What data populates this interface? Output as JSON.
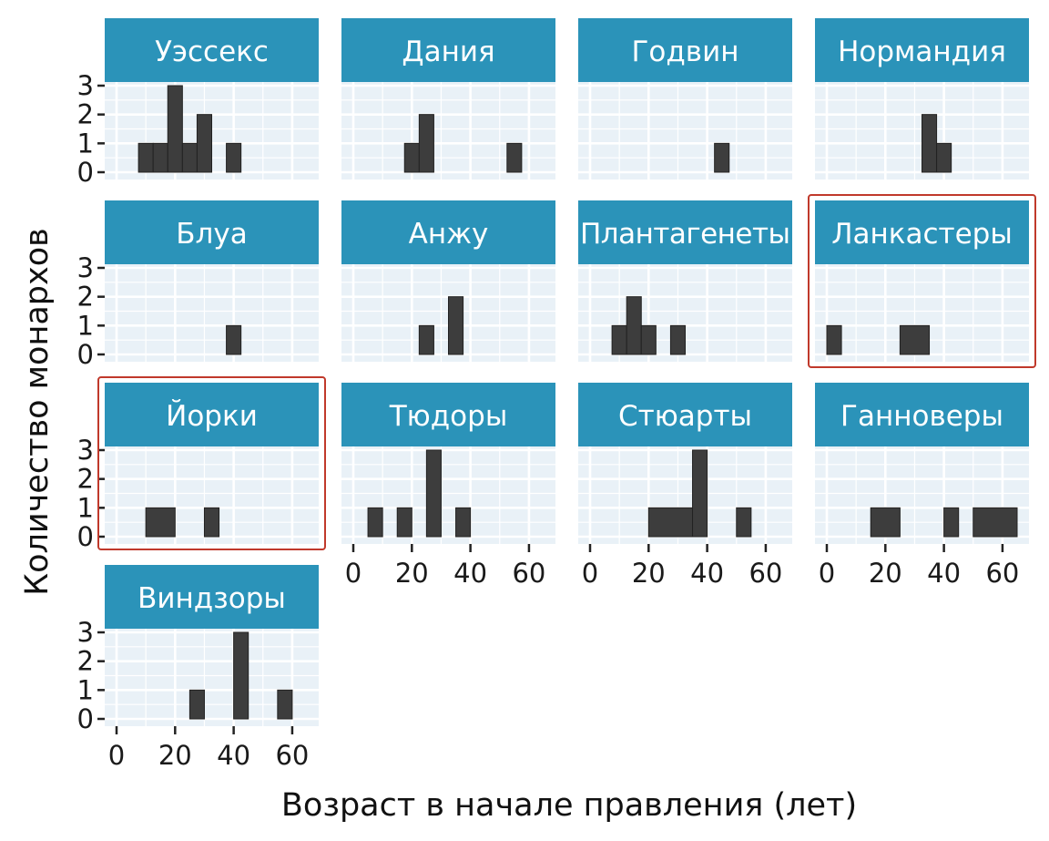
{
  "chart_data": {
    "type": "bar",
    "subtype": "faceted-histogram",
    "xlabel": "Возраст в начале правления (лет)",
    "ylabel": "Количество монархов",
    "x_ticks": [
      0,
      20,
      40,
      60
    ],
    "y_ticks": [
      0,
      1,
      2,
      3
    ],
    "xlim": [
      0,
      65
    ],
    "ylim": [
      0,
      3
    ],
    "bin_width": 5,
    "grid": true,
    "colors": {
      "strip": "#2b93b9",
      "panel": "#e9f1f7",
      "bar": "#3d3d3d",
      "highlight": "#c0392b"
    },
    "highlighted_facets": [
      "Ланкастеры",
      "Йорки"
    ],
    "facets": [
      {
        "name": "Уэссекс",
        "bins": [
          {
            "x0": 7.5,
            "x1": 12.5,
            "count": 1
          },
          {
            "x0": 12.5,
            "x1": 17.5,
            "count": 1
          },
          {
            "x0": 17.5,
            "x1": 22.5,
            "count": 3
          },
          {
            "x0": 22.5,
            "x1": 27.5,
            "count": 1
          },
          {
            "x0": 27.5,
            "x1": 32.5,
            "count": 2
          },
          {
            "x0": 37.5,
            "x1": 42.5,
            "count": 1
          }
        ]
      },
      {
        "name": "Дания",
        "bins": [
          {
            "x0": 17.5,
            "x1": 22.5,
            "count": 1
          },
          {
            "x0": 22.5,
            "x1": 27.5,
            "count": 2
          },
          {
            "x0": 52.5,
            "x1": 57.5,
            "count": 1
          }
        ]
      },
      {
        "name": "Годвин",
        "bins": [
          {
            "x0": 42.5,
            "x1": 47.5,
            "count": 1
          }
        ]
      },
      {
        "name": "Нормандия",
        "bins": [
          {
            "x0": 32.5,
            "x1": 37.5,
            "count": 2
          },
          {
            "x0": 37.5,
            "x1": 42.5,
            "count": 1
          }
        ]
      },
      {
        "name": "Блуа",
        "bins": [
          {
            "x0": 37.5,
            "x1": 42.5,
            "count": 1
          }
        ]
      },
      {
        "name": "Анжу",
        "bins": [
          {
            "x0": 22.5,
            "x1": 27.5,
            "count": 1
          },
          {
            "x0": 32.5,
            "x1": 37.5,
            "count": 2
          }
        ]
      },
      {
        "name": "Плантагенеты",
        "bins": [
          {
            "x0": 7.5,
            "x1": 12.5,
            "count": 1
          },
          {
            "x0": 12.5,
            "x1": 17.5,
            "count": 2
          },
          {
            "x0": 17.5,
            "x1": 22.5,
            "count": 1
          },
          {
            "x0": 27.5,
            "x1": 32.5,
            "count": 1
          }
        ]
      },
      {
        "name": "Ланкастеры",
        "bins": [
          {
            "x0": 0,
            "x1": 5,
            "count": 1
          },
          {
            "x0": 25,
            "x1": 35,
            "count": 1
          }
        ]
      },
      {
        "name": "Йорки",
        "bins": [
          {
            "x0": 10,
            "x1": 20,
            "count": 1
          },
          {
            "x0": 30,
            "x1": 35,
            "count": 1
          }
        ]
      },
      {
        "name": "Тюдоры",
        "bins": [
          {
            "x0": 5,
            "x1": 10,
            "count": 1
          },
          {
            "x0": 15,
            "x1": 20,
            "count": 1
          },
          {
            "x0": 25,
            "x1": 30,
            "count": 3
          },
          {
            "x0": 35,
            "x1": 40,
            "count": 1
          }
        ]
      },
      {
        "name": "Стюарты",
        "bins": [
          {
            "x0": 20,
            "x1": 35,
            "count": 1
          },
          {
            "x0": 35,
            "x1": 40,
            "count": 3
          },
          {
            "x0": 50,
            "x1": 55,
            "count": 1
          }
        ]
      },
      {
        "name": "Ганноверы",
        "bins": [
          {
            "x0": 15,
            "x1": 25,
            "count": 1
          },
          {
            "x0": 40,
            "x1": 45,
            "count": 1
          },
          {
            "x0": 50,
            "x1": 65,
            "count": 1
          }
        ]
      },
      {
        "name": "Виндзоры",
        "bins": [
          {
            "x0": 25,
            "x1": 30,
            "count": 1
          },
          {
            "x0": 40,
            "x1": 45,
            "count": 3
          },
          {
            "x0": 55,
            "x1": 60,
            "count": 1
          }
        ]
      }
    ]
  }
}
